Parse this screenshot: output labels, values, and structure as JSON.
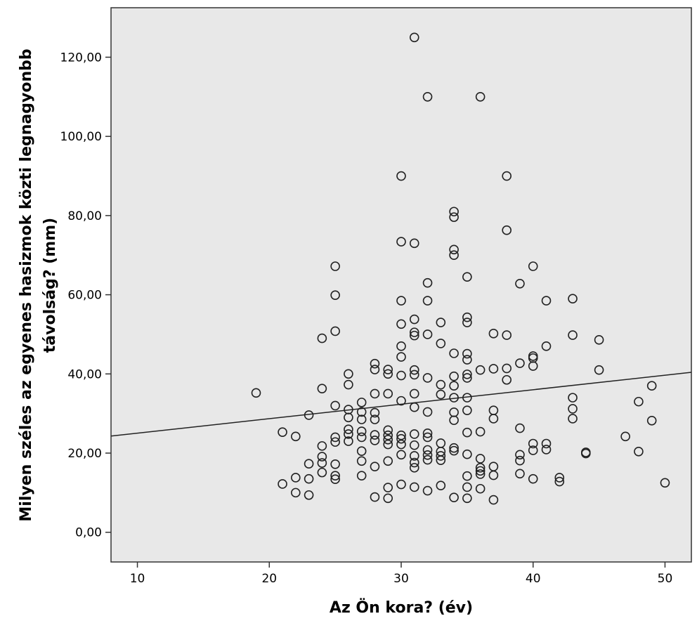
{
  "chart_data": {
    "type": "scatter",
    "xlabel": "Az Ön kora? (év)",
    "ylabel_lines": [
      "Milyen széles az egyenes hasizmok közti legnagyonbb",
      "távolság? (mm)"
    ],
    "xlim": [
      8,
      52
    ],
    "ylim": [
      -7.5,
      132.5
    ],
    "x_ticks": [
      10,
      20,
      30,
      40,
      50
    ],
    "x_tick_labels": [
      "10",
      "20",
      "30",
      "40",
      "50"
    ],
    "y_ticks": [
      0,
      20,
      40,
      60,
      80,
      100,
      120
    ],
    "y_tick_labels": [
      "0,00",
      "20,00",
      "40,00",
      "60,00",
      "80,00",
      "100,00",
      "120,00"
    ],
    "grid": false,
    "plot_background": "#e8e8e8",
    "fit_line": {
      "x": [
        8,
        52
      ],
      "y": [
        24.3,
        40.4
      ]
    },
    "points": [
      [
        19,
        35.2
      ],
      [
        21,
        25.3
      ],
      [
        21,
        12.2
      ],
      [
        22,
        24.2
      ],
      [
        22,
        13.8
      ],
      [
        22,
        10.0
      ],
      [
        23,
        29.6
      ],
      [
        23,
        17.3
      ],
      [
        23,
        13.5
      ],
      [
        23,
        9.4
      ],
      [
        24,
        49.0
      ],
      [
        24,
        36.3
      ],
      [
        24,
        21.8
      ],
      [
        24,
        19.1
      ],
      [
        24,
        17.5
      ],
      [
        24,
        15.1
      ],
      [
        25,
        67.2
      ],
      [
        25,
        59.9
      ],
      [
        25,
        50.8
      ],
      [
        25,
        32.0
      ],
      [
        25,
        24.0
      ],
      [
        25,
        22.8
      ],
      [
        25,
        17.2
      ],
      [
        25,
        14.3
      ],
      [
        25,
        13.4
      ],
      [
        26,
        40.0
      ],
      [
        26,
        37.3
      ],
      [
        26,
        31.0
      ],
      [
        26,
        29.0
      ],
      [
        26,
        26.0
      ],
      [
        26,
        24.8
      ],
      [
        26,
        23.0
      ],
      [
        27,
        32.8
      ],
      [
        27,
        30.4
      ],
      [
        27,
        28.5
      ],
      [
        27,
        25.5
      ],
      [
        27,
        24.0
      ],
      [
        27,
        20.5
      ],
      [
        27,
        18.0
      ],
      [
        27,
        14.3
      ],
      [
        28,
        42.6
      ],
      [
        28,
        41.1
      ],
      [
        28,
        35.0
      ],
      [
        28,
        30.2
      ],
      [
        28,
        28.5
      ],
      [
        28,
        24.6
      ],
      [
        28,
        23.2
      ],
      [
        28,
        16.6
      ],
      [
        28,
        8.9
      ],
      [
        29,
        41.1
      ],
      [
        29,
        40.0
      ],
      [
        29,
        35.0
      ],
      [
        29,
        25.8
      ],
      [
        29,
        24.5
      ],
      [
        29,
        23.4
      ],
      [
        29,
        22.2
      ],
      [
        29,
        18.0
      ],
      [
        29,
        11.3
      ],
      [
        29,
        8.6
      ],
      [
        30,
        90.0
      ],
      [
        30,
        73.4
      ],
      [
        30,
        58.5
      ],
      [
        30,
        52.6
      ],
      [
        30,
        47.0
      ],
      [
        30,
        44.3
      ],
      [
        30,
        39.6
      ],
      [
        30,
        33.2
      ],
      [
        30,
        24.5
      ],
      [
        30,
        23.6
      ],
      [
        30,
        22.2
      ],
      [
        30,
        19.6
      ],
      [
        30,
        12.1
      ],
      [
        31,
        125.0
      ],
      [
        31,
        73.0
      ],
      [
        31,
        53.8
      ],
      [
        31,
        50.5
      ],
      [
        31,
        49.7
      ],
      [
        31,
        41.0
      ],
      [
        31,
        39.8
      ],
      [
        31,
        35.0
      ],
      [
        31,
        31.6
      ],
      [
        31,
        24.8
      ],
      [
        31,
        22.0
      ],
      [
        31,
        19.3
      ],
      [
        31,
        17.6
      ],
      [
        31,
        16.3
      ],
      [
        31,
        11.4
      ],
      [
        32,
        110.0
      ],
      [
        32,
        63.0
      ],
      [
        32,
        58.5
      ],
      [
        32,
        50.0
      ],
      [
        32,
        39.0
      ],
      [
        32,
        30.4
      ],
      [
        32,
        25.0
      ],
      [
        32,
        24.0
      ],
      [
        32,
        20.8
      ],
      [
        32,
        19.5
      ],
      [
        32,
        18.3
      ],
      [
        32,
        10.5
      ],
      [
        33,
        53.0
      ],
      [
        33,
        47.7
      ],
      [
        33,
        37.3
      ],
      [
        33,
        34.8
      ],
      [
        33,
        22.5
      ],
      [
        33,
        20.4
      ],
      [
        33,
        19.3
      ],
      [
        33,
        18.2
      ],
      [
        33,
        11.8
      ],
      [
        34,
        81.0
      ],
      [
        34,
        79.6
      ],
      [
        34,
        71.4
      ],
      [
        34,
        70.0
      ],
      [
        34,
        45.2
      ],
      [
        34,
        39.4
      ],
      [
        34,
        37.0
      ],
      [
        34,
        34.0
      ],
      [
        34,
        30.3
      ],
      [
        34,
        28.3
      ],
      [
        34,
        21.3
      ],
      [
        34,
        20.6
      ],
      [
        34,
        8.8
      ],
      [
        35,
        64.5
      ],
      [
        35,
        54.3
      ],
      [
        35,
        53.0
      ],
      [
        35,
        45.1
      ],
      [
        35,
        43.6
      ],
      [
        35,
        39.9
      ],
      [
        35,
        39.0
      ],
      [
        35,
        34.0
      ],
      [
        35,
        30.8
      ],
      [
        35,
        25.2
      ],
      [
        35,
        19.7
      ],
      [
        35,
        14.2
      ],
      [
        35,
        11.4
      ],
      [
        35,
        8.6
      ],
      [
        36,
        110.0
      ],
      [
        36,
        41.0
      ],
      [
        36,
        25.4
      ],
      [
        36,
        18.6
      ],
      [
        36,
        16.3
      ],
      [
        36,
        15.5
      ],
      [
        36,
        14.7
      ],
      [
        36,
        11.0
      ],
      [
        37,
        50.2
      ],
      [
        37,
        41.3
      ],
      [
        37,
        30.8
      ],
      [
        37,
        28.7
      ],
      [
        37,
        16.6
      ],
      [
        37,
        14.4
      ],
      [
        37,
        8.2
      ],
      [
        38,
        90.0
      ],
      [
        38,
        76.3
      ],
      [
        38,
        49.8
      ],
      [
        38,
        41.4
      ],
      [
        38,
        38.5
      ],
      [
        39,
        62.8
      ],
      [
        39,
        42.7
      ],
      [
        39,
        26.3
      ],
      [
        39,
        19.6
      ],
      [
        39,
        18.1
      ],
      [
        39,
        14.8
      ],
      [
        40,
        67.2
      ],
      [
        40,
        44.5
      ],
      [
        40,
        44.0
      ],
      [
        40,
        42.0
      ],
      [
        40,
        22.4
      ],
      [
        40,
        20.7
      ],
      [
        40,
        13.5
      ],
      [
        41,
        58.5
      ],
      [
        41,
        47.0
      ],
      [
        41,
        22.4
      ],
      [
        41,
        20.9
      ],
      [
        42,
        13.8
      ],
      [
        42,
        12.8
      ],
      [
        43,
        59.0
      ],
      [
        43,
        49.8
      ],
      [
        43,
        34.0
      ],
      [
        43,
        31.2
      ],
      [
        43,
        28.7
      ],
      [
        44,
        20.2
      ],
      [
        44,
        19.9
      ],
      [
        45,
        48.6
      ],
      [
        45,
        41.0
      ],
      [
        47,
        24.2
      ],
      [
        48,
        33.0
      ],
      [
        48,
        20.4
      ],
      [
        49,
        37.0
      ],
      [
        49,
        28.2
      ],
      [
        50,
        12.5
      ]
    ]
  }
}
